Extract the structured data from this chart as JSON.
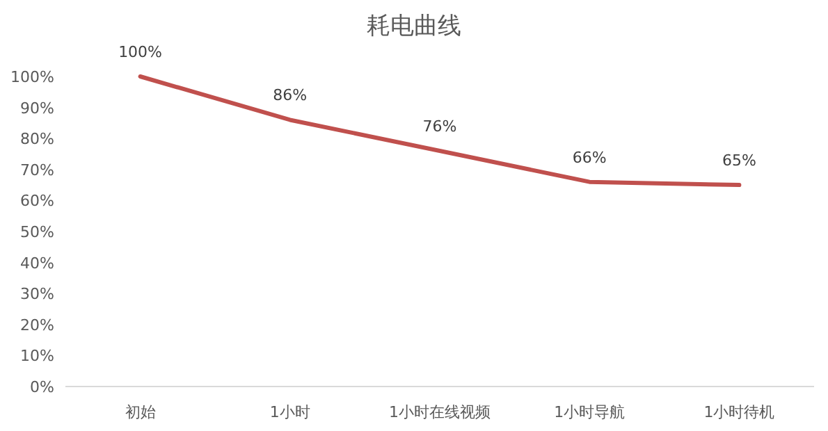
{
  "chart_data": {
    "type": "line",
    "title": "耗电曲线",
    "categories": [
      "初始",
      "1小时",
      "1小时在线视频",
      "1小时导航",
      "1小时待机"
    ],
    "series": [
      {
        "color": "#c0504d",
        "values": [
          100,
          86,
          76,
          66,
          65
        ],
        "value_labels": [
          "100%",
          "86%",
          "76%",
          "66%",
          "65%"
        ]
      }
    ],
    "ylim": [
      0,
      100
    ],
    "yticks": [
      {
        "value": 0,
        "label": "0%"
      },
      {
        "value": 10,
        "label": "10%"
      },
      {
        "value": 20,
        "label": "20%"
      },
      {
        "value": 30,
        "label": "30%"
      },
      {
        "value": 40,
        "label": "40%"
      },
      {
        "value": 50,
        "label": "50%"
      },
      {
        "value": 60,
        "label": "60%"
      },
      {
        "value": 70,
        "label": "70%"
      },
      {
        "value": 80,
        "label": "80%"
      },
      {
        "value": 90,
        "label": "90%"
      },
      {
        "value": 100,
        "label": "100%"
      }
    ],
    "marker": "none",
    "line_style": "solid"
  }
}
